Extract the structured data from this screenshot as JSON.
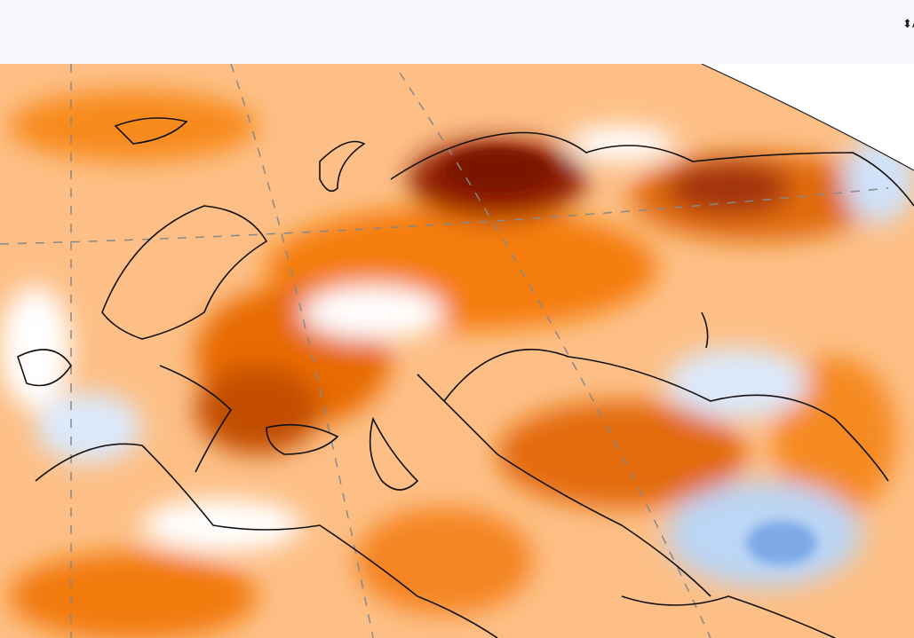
{
  "toolbar": {
    "select": "A"
  }
}
